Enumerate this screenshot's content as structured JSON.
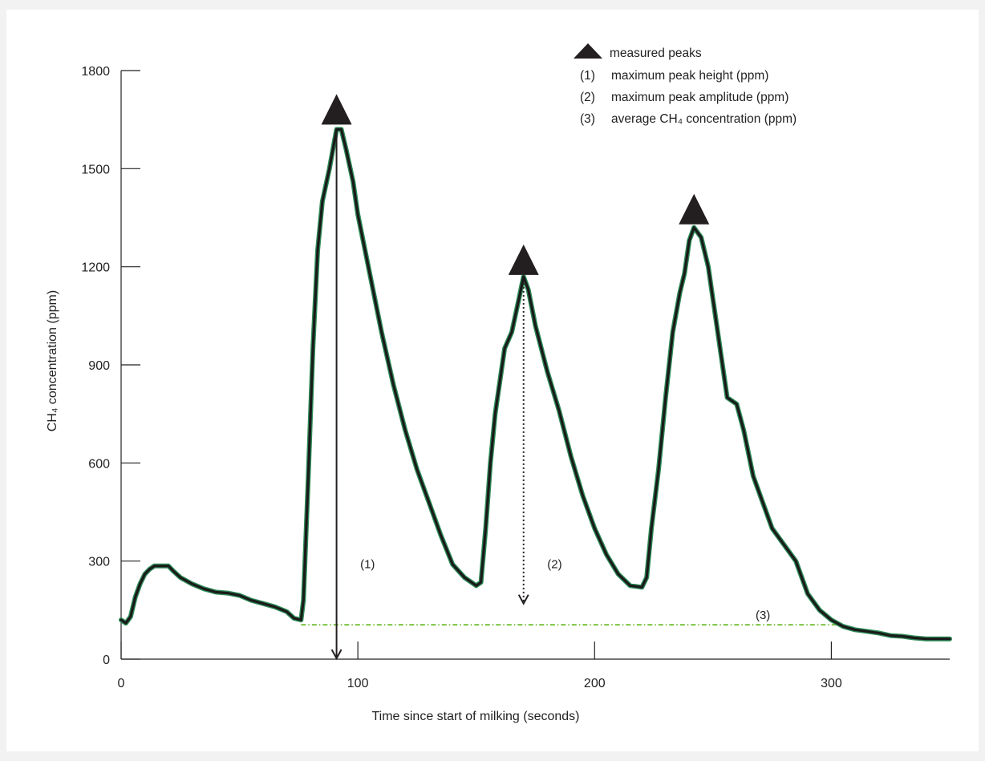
{
  "chart_data": {
    "type": "line",
    "xlabel": "Time since start of milking (seconds)",
    "ylabel": "CH₄ concentration (ppm)",
    "xlim": [
      0,
      350
    ],
    "ylim": [
      0,
      1800
    ],
    "x_ticks": [
      0,
      100,
      200,
      300
    ],
    "y_ticks": [
      0,
      300,
      600,
      900,
      1200,
      1500,
      1800
    ],
    "grid": false,
    "legend_position": "top-right",
    "legend": {
      "marker_label": "measured peaks",
      "items": [
        {
          "num": "(1)",
          "text": "maximum peak height (ppm)"
        },
        {
          "num": "(2)",
          "text": "maximum peak amplitude (ppm)"
        },
        {
          "num": "(3)",
          "text": "average CH₄ concentration (ppm)"
        }
      ]
    },
    "series": [
      {
        "color": "#1a1a1a",
        "outline_color": "#2e8b57",
        "points": [
          [
            0,
            120
          ],
          [
            2,
            110
          ],
          [
            4,
            130
          ],
          [
            6,
            190
          ],
          [
            8,
            230
          ],
          [
            10,
            260
          ],
          [
            12,
            275
          ],
          [
            14,
            285
          ],
          [
            20,
            285
          ],
          [
            22,
            270
          ],
          [
            25,
            250
          ],
          [
            30,
            230
          ],
          [
            35,
            215
          ],
          [
            40,
            205
          ],
          [
            45,
            202
          ],
          [
            50,
            195
          ],
          [
            55,
            180
          ],
          [
            60,
            170
          ],
          [
            65,
            160
          ],
          [
            70,
            145
          ],
          [
            73,
            125
          ],
          [
            76,
            120
          ],
          [
            77,
            180
          ],
          [
            79,
            550
          ],
          [
            81,
            950
          ],
          [
            83,
            1250
          ],
          [
            85,
            1400
          ],
          [
            88,
            1500
          ],
          [
            90,
            1580
          ],
          [
            91,
            1620
          ],
          [
            93,
            1620
          ],
          [
            95,
            1560
          ],
          [
            98,
            1460
          ],
          [
            100,
            1360
          ],
          [
            105,
            1180
          ],
          [
            110,
            1000
          ],
          [
            115,
            840
          ],
          [
            120,
            700
          ],
          [
            125,
            580
          ],
          [
            130,
            480
          ],
          [
            135,
            380
          ],
          [
            140,
            290
          ],
          [
            145,
            250
          ],
          [
            150,
            225
          ],
          [
            152,
            235
          ],
          [
            154,
            400
          ],
          [
            156,
            600
          ],
          [
            158,
            750
          ],
          [
            162,
            950
          ],
          [
            165,
            1000
          ],
          [
            168,
            1100
          ],
          [
            170,
            1170
          ],
          [
            172,
            1130
          ],
          [
            175,
            1020
          ],
          [
            180,
            880
          ],
          [
            185,
            760
          ],
          [
            190,
            620
          ],
          [
            195,
            500
          ],
          [
            200,
            400
          ],
          [
            205,
            320
          ],
          [
            210,
            260
          ],
          [
            215,
            225
          ],
          [
            220,
            220
          ],
          [
            222,
            250
          ],
          [
            224,
            400
          ],
          [
            227,
            580
          ],
          [
            230,
            800
          ],
          [
            233,
            1000
          ],
          [
            236,
            1120
          ],
          [
            238,
            1180
          ],
          [
            240,
            1280
          ],
          [
            242,
            1320
          ],
          [
            245,
            1290
          ],
          [
            248,
            1200
          ],
          [
            252,
            1000
          ],
          [
            256,
            800
          ],
          [
            260,
            780
          ],
          [
            263,
            700
          ],
          [
            267,
            560
          ],
          [
            271,
            480
          ],
          [
            275,
            400
          ],
          [
            280,
            350
          ],
          [
            285,
            300
          ],
          [
            290,
            200
          ],
          [
            295,
            150
          ],
          [
            300,
            120
          ],
          [
            305,
            100
          ],
          [
            310,
            90
          ],
          [
            315,
            85
          ],
          [
            320,
            80
          ],
          [
            325,
            72
          ],
          [
            330,
            70
          ],
          [
            335,
            65
          ],
          [
            340,
            62
          ],
          [
            350,
            62
          ]
        ]
      }
    ],
    "peaks": [
      {
        "x": 91,
        "y": 1630
      },
      {
        "x": 170,
        "y": 1170
      },
      {
        "x": 242,
        "y": 1325
      }
    ],
    "annotations": [
      {
        "label": "(1)",
        "kind": "maximum peak height",
        "x": 91,
        "y_from": 1630,
        "y_to": 0,
        "label_x": 101,
        "label_y": 290
      },
      {
        "label": "(2)",
        "kind": "maximum peak amplitude",
        "x": 170,
        "y_from": 1170,
        "y_to": 170,
        "label_x": 180,
        "label_y": 290
      },
      {
        "label": "(3)",
        "kind": "average CH₄ concentration",
        "x_from": 76,
        "x_to": 305,
        "y": 105,
        "label_x": 268,
        "label_y": 135
      }
    ],
    "average_line_color": "#7cc242"
  }
}
